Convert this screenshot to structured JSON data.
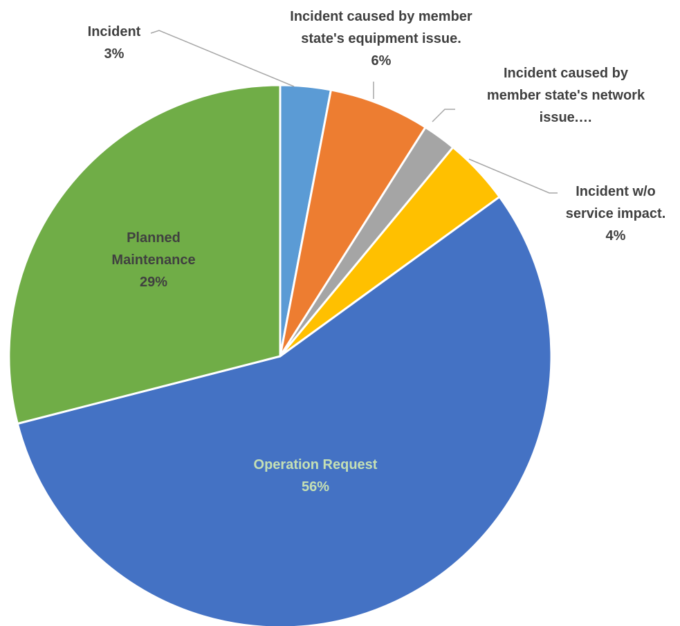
{
  "chart_data": {
    "type": "pie",
    "title": "",
    "slices": [
      {
        "name": "Incident",
        "value": 3,
        "pct_label": "3%",
        "label_lines": [
          "Incident",
          "3%"
        ],
        "color": "#5B9BD5",
        "label_color": "#404040"
      },
      {
        "name": "Incident caused by member state's equipment issue.",
        "value": 6,
        "pct_label": "6%",
        "label_lines": [
          "Incident caused by member",
          "state's equipment issue.",
          "6%"
        ],
        "color": "#ED7D31",
        "label_color": "#404040"
      },
      {
        "name": "Incident caused by member state's network issue.…",
        "value": 2,
        "pct_label": "",
        "label_lines": [
          "Incident caused by",
          "member state's network",
          "issue.…"
        ],
        "color": "#A5A5A5",
        "label_color": "#404040"
      },
      {
        "name": "Incident w/o service impact.",
        "value": 4,
        "pct_label": "4%",
        "label_lines": [
          "Incident w/o",
          "service impact.",
          "4%"
        ],
        "color": "#FFC000",
        "label_color": "#404040"
      },
      {
        "name": "Operation Request",
        "value": 56,
        "pct_label": "56%",
        "label_lines": [
          "Operation Request",
          "56%"
        ],
        "color": "#4472C4",
        "label_color": "#C5E0B4"
      },
      {
        "name": "Planned Maintenance",
        "value": 29,
        "pct_label": "29%",
        "label_lines": [
          "Planned",
          "Maintenance",
          "29%"
        ],
        "color": "#70AD47",
        "label_color": "#404040"
      }
    ],
    "start_angle_deg": 0,
    "direction": "clockwise",
    "legend": "none",
    "leader_line_color": "#A6A6A6"
  }
}
